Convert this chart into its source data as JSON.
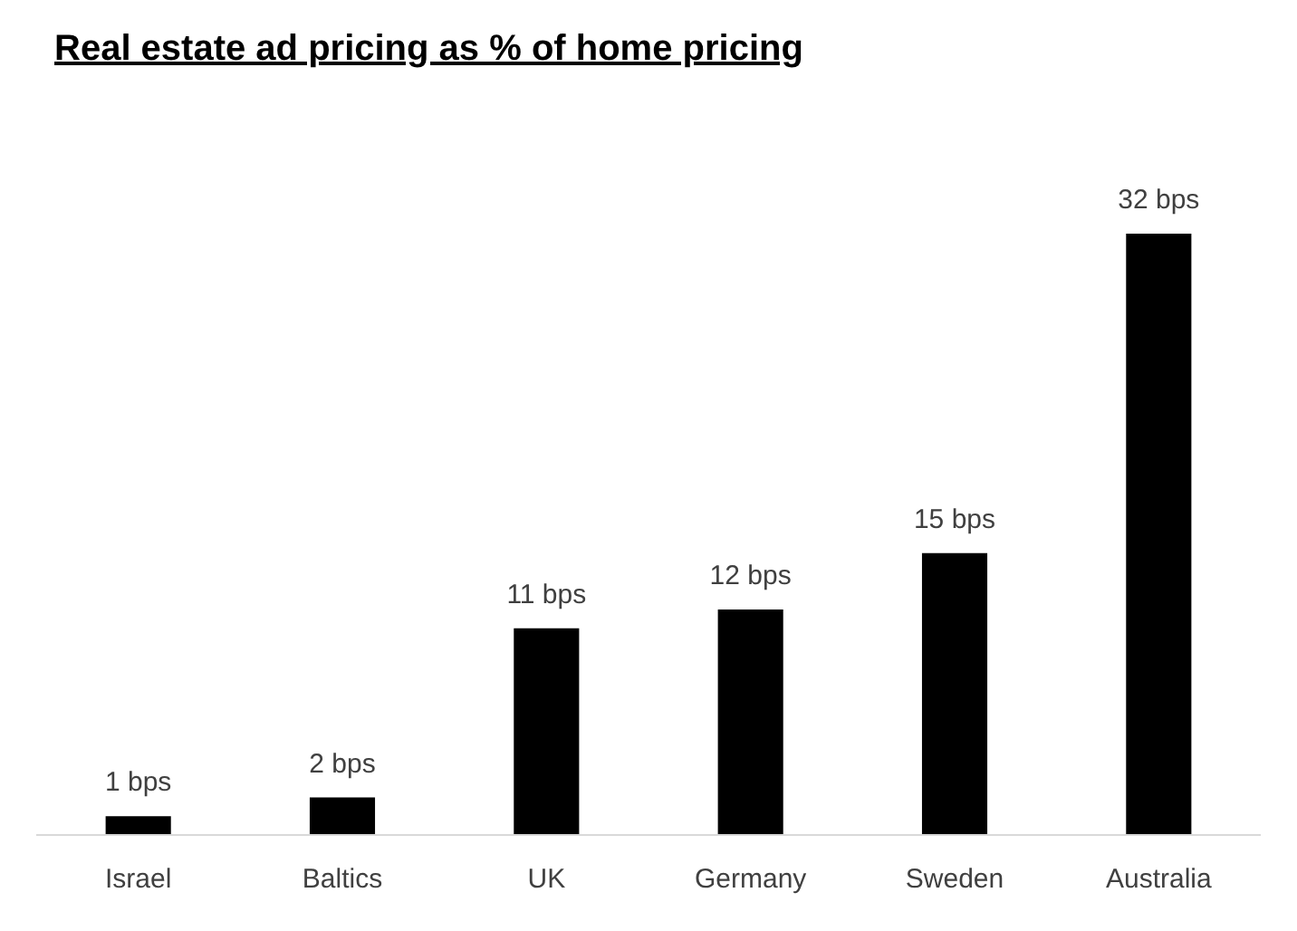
{
  "chart_data": {
    "type": "bar",
    "title": "Real estate ad pricing as % of home pricing",
    "categories": [
      "Israel",
      "Baltics",
      "UK",
      "Germany",
      "Sweden",
      "Australia"
    ],
    "values": [
      1,
      2,
      11,
      12,
      15,
      32
    ],
    "value_labels": [
      "1 bps",
      "2 bps",
      "11 bps",
      "12 bps",
      "15 bps",
      "32 bps"
    ],
    "color": "#000000"
  }
}
